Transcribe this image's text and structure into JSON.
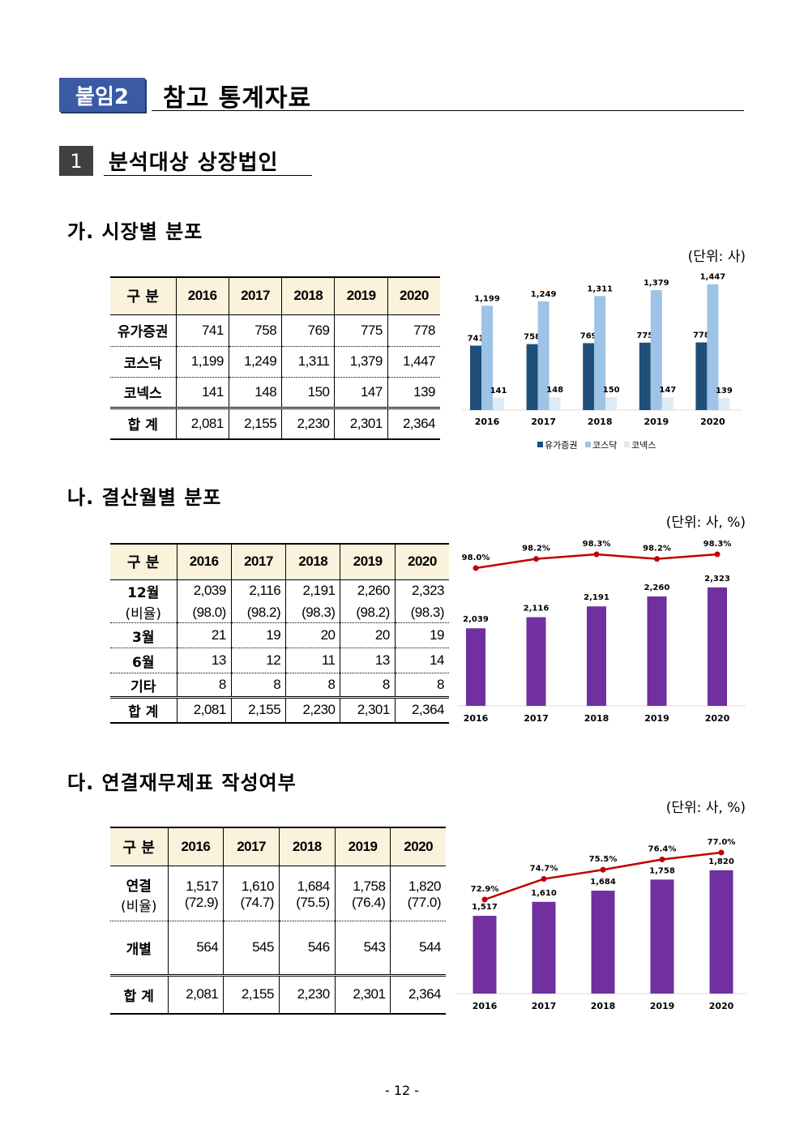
{
  "header": {
    "tag": "붙임2",
    "title": "참고 통계자료"
  },
  "section": {
    "number": "1",
    "title": "분석대상 상장법인"
  },
  "subsections": {
    "a": {
      "title": "가. 시장별 분포",
      "unit": "(단위: 사)"
    },
    "b": {
      "title": "나. 결산월별 분포",
      "unit": "(단위: 사, %)"
    },
    "c": {
      "title": "다. 연결재무제표 작성여부",
      "unit": "(단위: 사, %)"
    }
  },
  "table_a": {
    "header": [
      "구 분",
      "2016",
      "2017",
      "2018",
      "2019",
      "2020"
    ],
    "rows": [
      [
        "유가증권",
        "741",
        "758",
        "769",
        "775",
        "778"
      ],
      [
        "코스닥",
        "1,199",
        "1,249",
        "1,311",
        "1,379",
        "1,447"
      ],
      [
        "코넥스",
        "141",
        "148",
        "150",
        "147",
        "139"
      ],
      [
        "합 계",
        "2,081",
        "2,155",
        "2,230",
        "2,301",
        "2,364"
      ]
    ]
  },
  "table_b": {
    "header": [
      "구 분",
      "2016",
      "2017",
      "2018",
      "2019",
      "2020"
    ],
    "row12": [
      "12월",
      "2,039",
      "2,116",
      "2,191",
      "2,260",
      "2,323"
    ],
    "row12_ratio": [
      "(비율)",
      "(98.0)",
      "(98.2)",
      "(98.3)",
      "(98.2)",
      "(98.3)"
    ],
    "rows": [
      [
        "3월",
        "21",
        "19",
        "20",
        "20",
        "19"
      ],
      [
        "6월",
        "13",
        "12",
        "11",
        "13",
        "14"
      ],
      [
        "기타",
        "8",
        "8",
        "8",
        "8",
        "8"
      ],
      [
        "합 계",
        "2,081",
        "2,155",
        "2,230",
        "2,301",
        "2,364"
      ]
    ]
  },
  "table_c": {
    "header": [
      "구 분",
      "2016",
      "2017",
      "2018",
      "2019",
      "2020"
    ],
    "row_consol": [
      "연결",
      "1,517",
      "1,610",
      "1,684",
      "1,758",
      "1,820"
    ],
    "row_consol_ratio": [
      "(비율)",
      "(72.9)",
      "(74.7)",
      "(75.5)",
      "(76.4)",
      "(77.0)"
    ],
    "row_sep": [
      "개별",
      "564",
      "545",
      "546",
      "543",
      "544"
    ],
    "row_total": [
      "합 계",
      "2,081",
      "2,155",
      "2,230",
      "2,301",
      "2,364"
    ]
  },
  "chart_data": [
    {
      "type": "bar",
      "categories": [
        "2016",
        "2017",
        "2018",
        "2019",
        "2020"
      ],
      "series": [
        {
          "name": "유가증권",
          "values": [
            741,
            758,
            769,
            775,
            778
          ],
          "labels": [
            "741",
            "758",
            "769",
            "775",
            "778"
          ],
          "color": "#1f4e79"
        },
        {
          "name": "코스닥",
          "values": [
            1199,
            1249,
            1311,
            1379,
            1447
          ],
          "labels": [
            "1,199",
            "1,249",
            "1,311",
            "1,379",
            "1,447"
          ],
          "color": "#9dc3e6"
        },
        {
          "name": "코넥스",
          "values": [
            141,
            148,
            150,
            147,
            139
          ],
          "labels": [
            "141",
            "148",
            "150",
            "147",
            "139"
          ],
          "color": "#deebf7"
        }
      ],
      "ylim": [
        0,
        1500
      ],
      "legend": "bottom"
    },
    {
      "type": "bar",
      "categories": [
        "2016",
        "2017",
        "2018",
        "2019",
        "2020"
      ],
      "series": [
        {
          "type": "bar",
          "values": [
            2039,
            2116,
            2191,
            2260,
            2323
          ],
          "labels": [
            "2,039",
            "2,116",
            "2,191",
            "2,260",
            "2,323"
          ],
          "color": "#7030a0"
        },
        {
          "type": "line",
          "values": [
            98.0,
            98.2,
            98.3,
            98.2,
            98.3
          ],
          "labels": [
            "98.0%",
            "98.2%",
            "98.3%",
            "98.2%",
            "98.3%"
          ],
          "color": "#c00000"
        }
      ],
      "legend": "none"
    },
    {
      "type": "bar",
      "categories": [
        "2016",
        "2017",
        "2018",
        "2019",
        "2020"
      ],
      "series": [
        {
          "type": "bar",
          "values": [
            1517,
            1610,
            1684,
            1758,
            1820
          ],
          "labels": [
            "1,517",
            "1,610",
            "1,684",
            "1,758",
            "1,820"
          ],
          "color": "#7030a0"
        },
        {
          "type": "line",
          "values": [
            72.9,
            74.7,
            75.5,
            76.4,
            77.0
          ],
          "labels": [
            "72.9%",
            "74.7%",
            "75.5%",
            "76.4%",
            "77.0%"
          ],
          "color": "#c00000"
        }
      ],
      "legend": "none"
    }
  ],
  "footer": {
    "page": "- 12 -"
  }
}
